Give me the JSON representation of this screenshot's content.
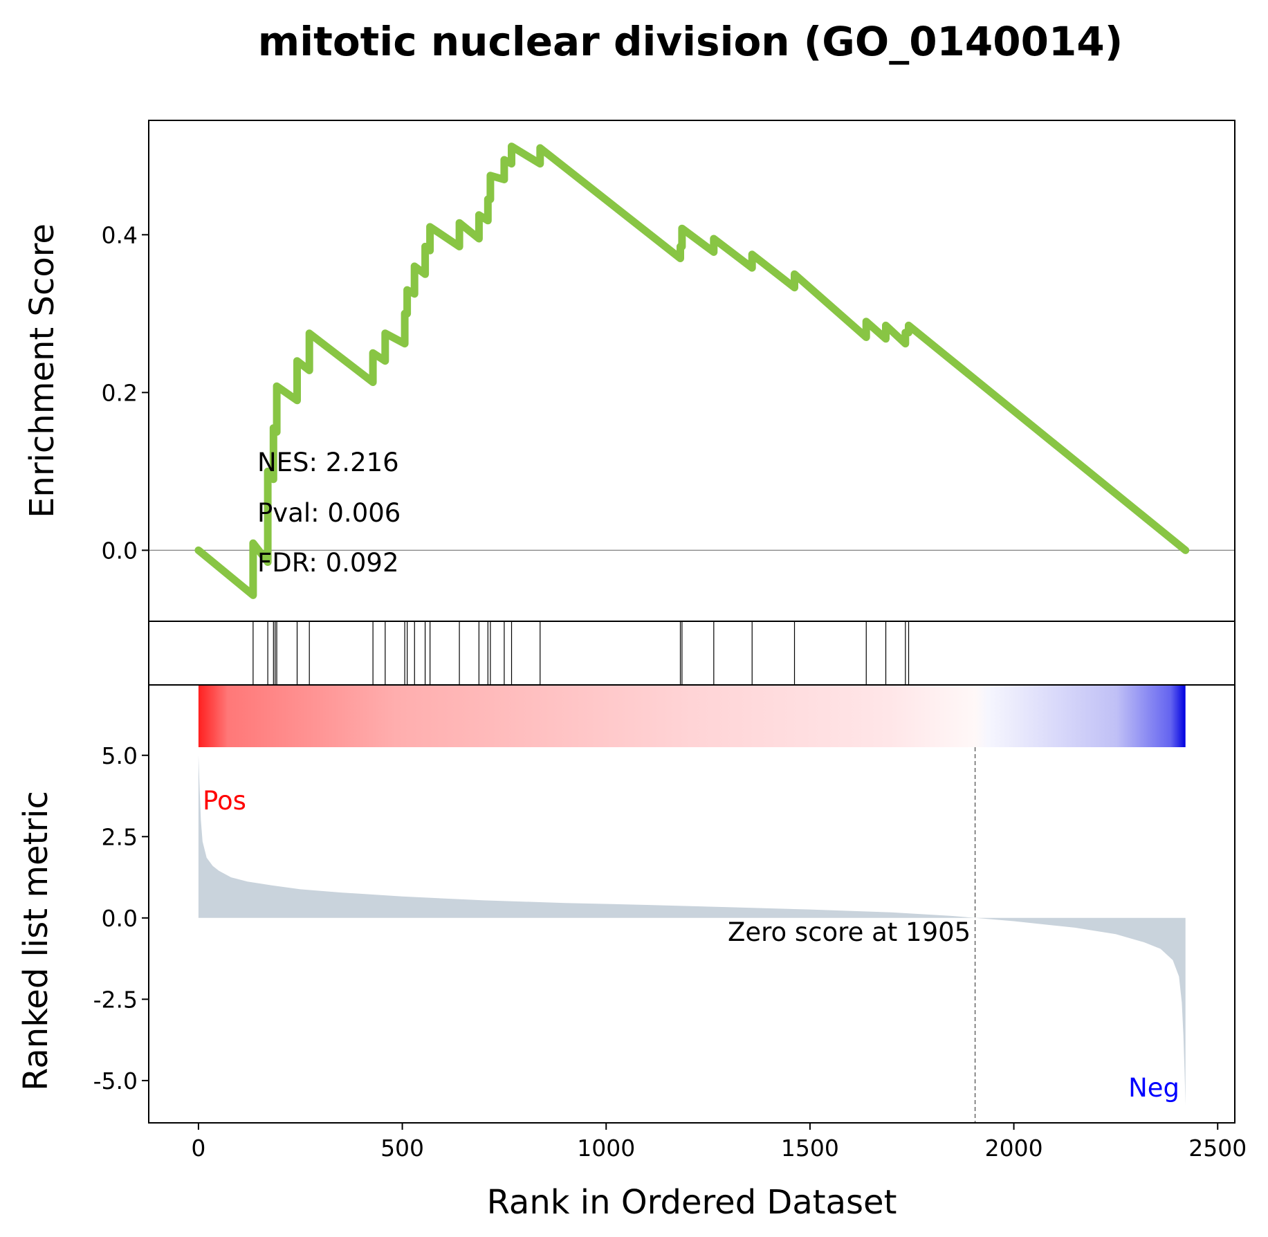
{
  "chart_data": {
    "type": "line",
    "title": "mitotic nuclear division (GO_0140014)",
    "colors": {
      "es_line": "#88c544",
      "metric_fill": "#c9d3dc",
      "pos_label": "#ff0000",
      "neg_label": "#0000ff",
      "zero_line": "#808080",
      "hit_line": "#000000"
    },
    "enrichment_panel": {
      "ylabel": "Enrichment Score",
      "ylim": [
        -0.09,
        0.545
      ],
      "yticks": [
        0.0,
        0.2,
        0.4
      ],
      "ytick_labels": [
        "0.0",
        "0.2",
        "0.4"
      ],
      "stats": [
        "NES: 2.216",
        "Pval: 0.006",
        "FDR: 0.092"
      ],
      "running_es": [
        {
          "x": 0,
          "y": 0.0
        },
        {
          "x": 134,
          "y": -0.057
        },
        {
          "x": 134,
          "y": 0.009
        },
        {
          "x": 170,
          "y": -0.015
        },
        {
          "x": 170,
          "y": 0.1
        },
        {
          "x": 184,
          "y": 0.09
        },
        {
          "x": 184,
          "y": 0.155
        },
        {
          "x": 192,
          "y": 0.15
        },
        {
          "x": 192,
          "y": 0.208
        },
        {
          "x": 242,
          "y": 0.19
        },
        {
          "x": 242,
          "y": 0.24
        },
        {
          "x": 272,
          "y": 0.228
        },
        {
          "x": 272,
          "y": 0.275
        },
        {
          "x": 428,
          "y": 0.213
        },
        {
          "x": 428,
          "y": 0.25
        },
        {
          "x": 458,
          "y": 0.24
        },
        {
          "x": 458,
          "y": 0.275
        },
        {
          "x": 506,
          "y": 0.262
        },
        {
          "x": 506,
          "y": 0.3
        },
        {
          "x": 512,
          "y": 0.3
        },
        {
          "x": 512,
          "y": 0.33
        },
        {
          "x": 530,
          "y": 0.325
        },
        {
          "x": 530,
          "y": 0.36
        },
        {
          "x": 556,
          "y": 0.35
        },
        {
          "x": 556,
          "y": 0.385
        },
        {
          "x": 568,
          "y": 0.38
        },
        {
          "x": 568,
          "y": 0.41
        },
        {
          "x": 640,
          "y": 0.385
        },
        {
          "x": 640,
          "y": 0.415
        },
        {
          "x": 688,
          "y": 0.395
        },
        {
          "x": 688,
          "y": 0.425
        },
        {
          "x": 710,
          "y": 0.418
        },
        {
          "x": 710,
          "y": 0.445
        },
        {
          "x": 716,
          "y": 0.445
        },
        {
          "x": 716,
          "y": 0.475
        },
        {
          "x": 750,
          "y": 0.47
        },
        {
          "x": 750,
          "y": 0.495
        },
        {
          "x": 768,
          "y": 0.49
        },
        {
          "x": 768,
          "y": 0.512
        },
        {
          "x": 838,
          "y": 0.49
        },
        {
          "x": 838,
          "y": 0.51
        },
        {
          "x": 1182,
          "y": 0.37
        },
        {
          "x": 1182,
          "y": 0.385
        },
        {
          "x": 1186,
          "y": 0.385
        },
        {
          "x": 1186,
          "y": 0.408
        },
        {
          "x": 1264,
          "y": 0.378
        },
        {
          "x": 1264,
          "y": 0.395
        },
        {
          "x": 1358,
          "y": 0.358
        },
        {
          "x": 1358,
          "y": 0.375
        },
        {
          "x": 1462,
          "y": 0.333
        },
        {
          "x": 1462,
          "y": 0.35
        },
        {
          "x": 1638,
          "y": 0.27
        },
        {
          "x": 1638,
          "y": 0.29
        },
        {
          "x": 1686,
          "y": 0.268
        },
        {
          "x": 1686,
          "y": 0.285
        },
        {
          "x": 1734,
          "y": 0.262
        },
        {
          "x": 1734,
          "y": 0.276
        },
        {
          "x": 1742,
          "y": 0.276
        },
        {
          "x": 1742,
          "y": 0.285
        },
        {
          "x": 2421,
          "y": 0.0
        }
      ]
    },
    "hits_panel": {
      "hit_ranks": [
        134,
        170,
        184,
        188,
        192,
        242,
        272,
        428,
        458,
        506,
        512,
        530,
        556,
        568,
        640,
        688,
        710,
        716,
        750,
        768,
        838,
        1182,
        1186,
        1264,
        1358,
        1462,
        1638,
        1686,
        1734,
        1742
      ]
    },
    "metric_panel": {
      "ylabel": "Ranked list metric",
      "xlabel": "Rank in Ordered Dataset",
      "ylim": [
        -6.3,
        5.25
      ],
      "xlim": [
        -122,
        2542
      ],
      "yticks": [
        -5.0,
        -2.5,
        0.0,
        2.5,
        5.0
      ],
      "ytick_labels": [
        "-5.0",
        "-2.5",
        "0.0",
        "2.5",
        "5.0"
      ],
      "xticks": [
        0,
        500,
        1000,
        1500,
        2000,
        2500
      ],
      "xtick_labels": [
        "0",
        "500",
        "1000",
        "1500",
        "2000",
        "2500"
      ],
      "pos_label": "Pos",
      "neg_label": "Neg",
      "zero_score_rank": 1905,
      "zero_score_label": "Zero score at 1905",
      "heatmap_range": [
        0,
        2421
      ],
      "ranked_metric": [
        {
          "x": 0,
          "y": 5.0
        },
        {
          "x": 3,
          "y": 3.9
        },
        {
          "x": 6,
          "y": 3.0
        },
        {
          "x": 10,
          "y": 2.35
        },
        {
          "x": 20,
          "y": 1.85
        },
        {
          "x": 35,
          "y": 1.6
        },
        {
          "x": 50,
          "y": 1.45
        },
        {
          "x": 80,
          "y": 1.25
        },
        {
          "x": 120,
          "y": 1.12
        },
        {
          "x": 180,
          "y": 1.0
        },
        {
          "x": 250,
          "y": 0.88
        },
        {
          "x": 350,
          "y": 0.78
        },
        {
          "x": 500,
          "y": 0.66
        },
        {
          "x": 700,
          "y": 0.54
        },
        {
          "x": 900,
          "y": 0.46
        },
        {
          "x": 1100,
          "y": 0.4
        },
        {
          "x": 1300,
          "y": 0.33
        },
        {
          "x": 1500,
          "y": 0.26
        },
        {
          "x": 1700,
          "y": 0.17
        },
        {
          "x": 1850,
          "y": 0.06
        },
        {
          "x": 1905,
          "y": 0.0
        },
        {
          "x": 2000,
          "y": -0.1
        },
        {
          "x": 2150,
          "y": -0.3
        },
        {
          "x": 2250,
          "y": -0.5
        },
        {
          "x": 2320,
          "y": -0.75
        },
        {
          "x": 2360,
          "y": -0.95
        },
        {
          "x": 2390,
          "y": -1.3
        },
        {
          "x": 2405,
          "y": -1.8
        },
        {
          "x": 2412,
          "y": -2.6
        },
        {
          "x": 2416,
          "y": -3.6
        },
        {
          "x": 2419,
          "y": -4.8
        },
        {
          "x": 2421,
          "y": -5.75
        }
      ]
    }
  }
}
